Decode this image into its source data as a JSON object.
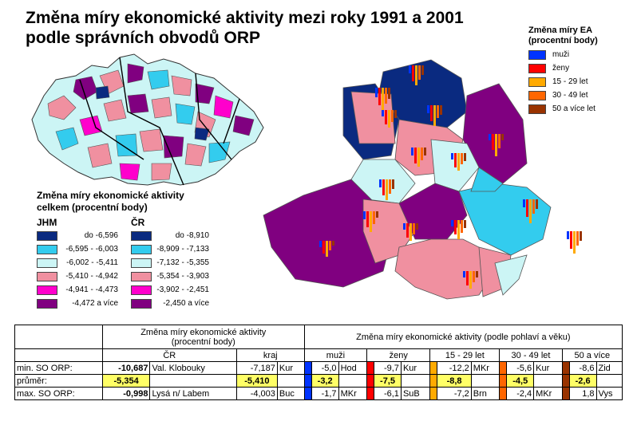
{
  "title": {
    "line1": "Změna míry ekonomické aktivity mezi roky 1991 a 2001",
    "line2": "podle správních obvodů ORP"
  },
  "legend_total": {
    "title_line1": "Změna míry ekonomické aktivity",
    "title_line2": "celkem (procentní body)",
    "col_jhm": "JHM",
    "col_cr": "ČR",
    "jhm": [
      {
        "label": "do -6,596",
        "color": "#0a2a80"
      },
      {
        "label": "-6,595 - -6,003",
        "color": "#33ccee"
      },
      {
        "label": "-6,002 - -5,411",
        "color": "#ccf5f5"
      },
      {
        "label": "-5,410 - -4,942",
        "color": "#f090a0"
      },
      {
        "label": "-4,941 - -4,473",
        "color": "#ff00cc"
      },
      {
        "label": "-4,472 a více",
        "color": "#800080"
      }
    ],
    "cr": [
      {
        "label": "do -8,910",
        "color": "#0a2a80"
      },
      {
        "label": "-8,909 - -7,133",
        "color": "#33ccee"
      },
      {
        "label": "-7,132 - -5,355",
        "color": "#ccf5f5"
      },
      {
        "label": "-5,354 - -3,903",
        "color": "#f090a0"
      },
      {
        "label": "-3,902 - -2,451",
        "color": "#ff00cc"
      },
      {
        "label": "-2,450 a více",
        "color": "#800080"
      }
    ]
  },
  "legend_ea": {
    "title_line1": "Změna míry EA",
    "title_line2": "(procentní body)",
    "items": [
      {
        "label": "muži",
        "color": "#0033ff"
      },
      {
        "label": "ženy",
        "color": "#ff0000"
      },
      {
        "label": "15 - 29 let",
        "color": "#ffaa00"
      },
      {
        "label": "30 - 49 let",
        "color": "#ff6600"
      },
      {
        "label": "50 a více let",
        "color": "#993300"
      }
    ]
  },
  "table": {
    "header_group1_line1": "Změna míry ekonomické aktivity",
    "header_group1_line2": "(procentní body)",
    "header_group2": "Změna míry ekonomické aktivity (podle pohlaví a věku)",
    "sub_cr": "ČR",
    "sub_kraj": "kraj",
    "sub_muzi": "muži",
    "sub_zeny": "ženy",
    "sub_1529": "15 - 29 let",
    "sub_3049": "30 - 49 let",
    "sub_50": "50 a více",
    "rows": [
      {
        "label": "min. SO ORP:",
        "cr_val": "-10,687",
        "cr_name": "Val. Klobouky",
        "kraj_val": "-7,187",
        "kraj_name": "Kur",
        "muzi_val": "-5,0",
        "muzi_name": "Hod",
        "zeny_val": "-9,7",
        "zeny_name": "Kur",
        "a1529_val": "-12,2",
        "a1529_name": "MKr",
        "a3049_val": "-5,6",
        "a3049_name": "Kur",
        "a50_val": "-8,6",
        "a50_name": "Zid"
      },
      {
        "label": "průměr:",
        "cr_val": "-5,354",
        "kraj_val": "-5,410",
        "muzi_val": "-3,2",
        "zeny_val": "-7,5",
        "a1529_val": "-8,8",
        "a3049_val": "-4,5",
        "a50_val": "-2,6"
      },
      {
        "label": "max. SO ORP:",
        "cr_val": "-0,998",
        "cr_name": "Lysá n/ Labem",
        "kraj_val": "-4,003",
        "kraj_name": "Buc",
        "muzi_val": "-1,7",
        "muzi_name": "MKr",
        "zeny_val": "-6,1",
        "zeny_name": "SuB",
        "a1529_val": "-7,2",
        "a1529_name": "Brn",
        "a3049_val": "-2,4",
        "a3049_name": "MKr",
        "a50_val": "1,8",
        "a50_name": "Vys"
      }
    ]
  },
  "colors": {
    "muzi": "#0033ff",
    "zeny": "#ff0000",
    "a1529": "#ffaa00",
    "a3049": "#ff6600",
    "a50": "#993300",
    "highlight": "#ffff66"
  }
}
